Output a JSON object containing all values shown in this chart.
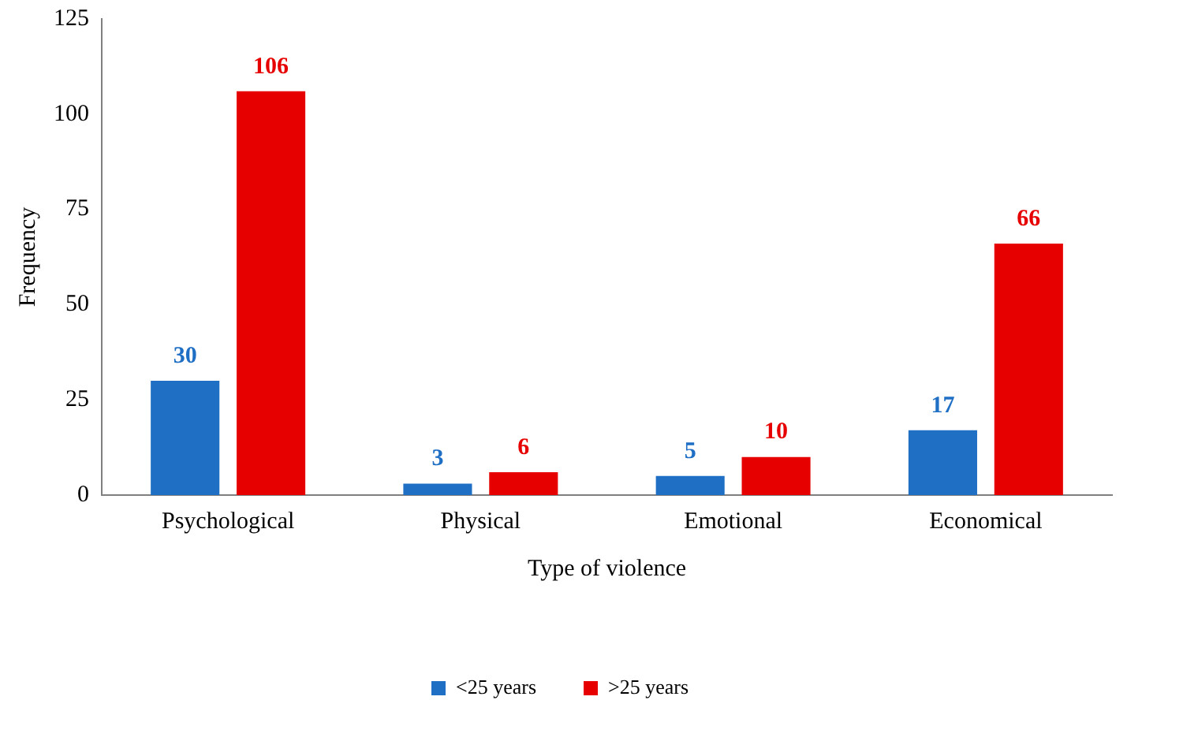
{
  "chart_data": {
    "type": "bar",
    "xlabel": "Type of violence",
    "ylabel": "Frequency",
    "categories": [
      "Psychological",
      "Physical",
      "Emotional",
      "Economical"
    ],
    "series": [
      {
        "name": "<25 years",
        "color": "#1f6fc5",
        "values": [
          30,
          3,
          5,
          17
        ]
      },
      {
        "name": ">25 years",
        "color": "#e60000",
        "values": [
          106,
          6,
          10,
          66
        ]
      }
    ],
    "ylim": [
      0,
      125
    ],
    "yticks": [
      0,
      25,
      50,
      75,
      100,
      125
    ],
    "grid": false,
    "legend": "bottom",
    "data_labels": true
  }
}
